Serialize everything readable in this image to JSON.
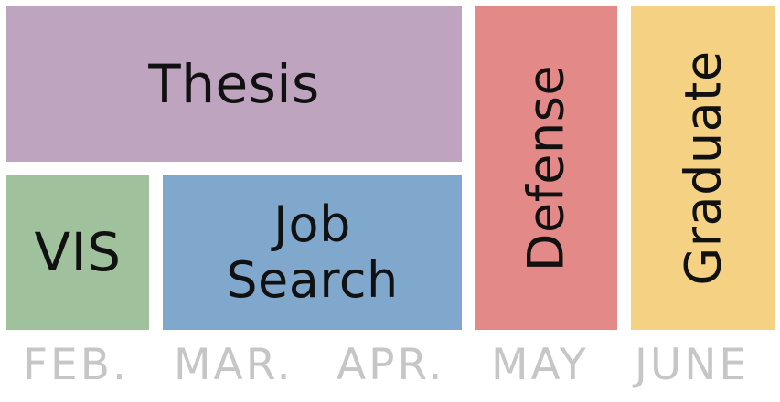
{
  "blocks": {
    "thesis": {
      "label": "Thesis",
      "color": "#bea4bf"
    },
    "vis": {
      "label": "VIS",
      "color": "#9fc29d"
    },
    "job_search": {
      "label_line1": "Job",
      "label_line2": "Search",
      "color": "#80a7cc"
    },
    "defense": {
      "label": "Defense",
      "color": "#e38a89"
    },
    "graduate": {
      "label": "Graduate",
      "color": "#f4d183"
    }
  },
  "months": [
    "FEB.",
    "MAR.",
    "APR.",
    "MAY",
    "JUNE"
  ],
  "colors": {
    "month_text": "#c6c6c6",
    "block_text": "#111111"
  }
}
